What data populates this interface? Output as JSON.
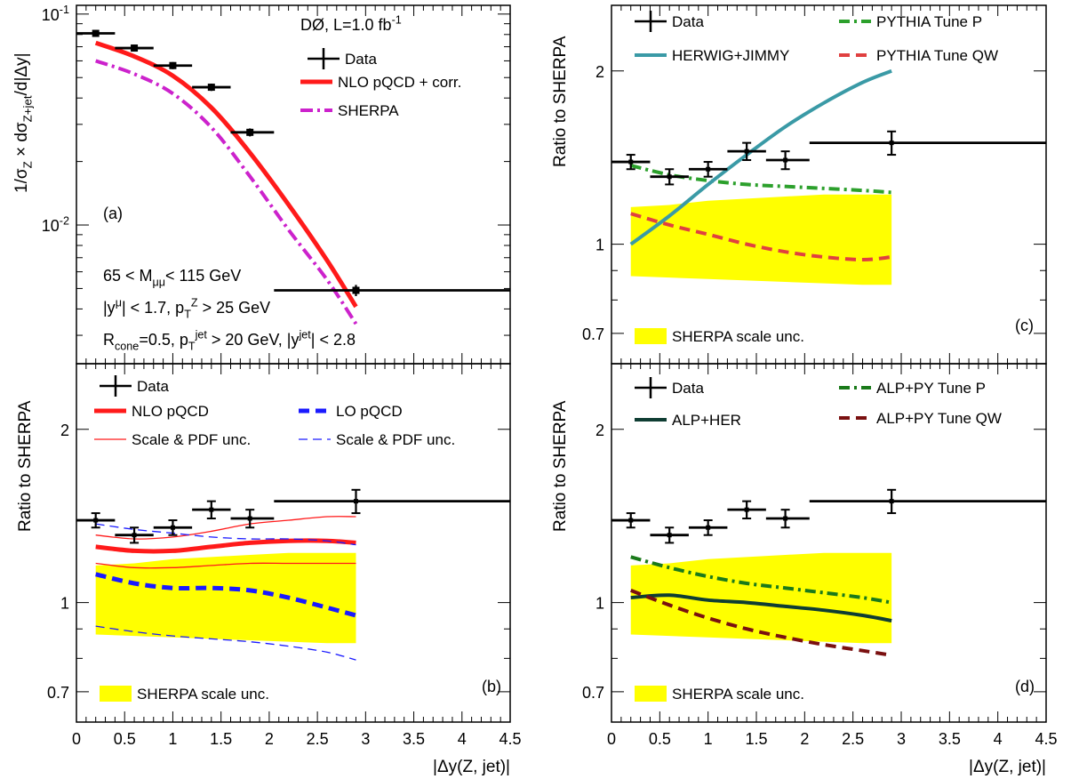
{
  "colors": {
    "black": "#000000",
    "nlo_red": "#ff1a1a",
    "lo_blue": "#1a1aff",
    "sherpa_magenta": "#cc22cc",
    "band_yellow": "#ffff00",
    "herwig_teal": "#3a9aa6",
    "pythia_p_green": "#2ca02c",
    "pythia_qw_red": "#e04040",
    "alp_her": "#0f3d33",
    "alp_py_p": "#1a7a1a",
    "alp_py_qw": "#7a1010"
  },
  "chart_data": [
    {
      "id": "a",
      "type": "line",
      "scale": "log",
      "panel_label": "(a)",
      "ylabel": "1/σ_Z × dσ_Z+jet/d|Δy|",
      "ylim": [
        0.0022,
        0.11
      ],
      "y_ticks": [
        0.01,
        0.1
      ],
      "y_tick_labels": [
        "10^-2",
        "10^-1"
      ],
      "xlim": [
        0,
        4.5
      ],
      "header": "DØ, L=1.0 fb^-1",
      "cuts": [
        "65 < M_μμ< 115 GeV",
        "|y^μ| < 1.7, p_T^Z > 25 GeV",
        "R_cone=0.5, p_T^jet > 20 GeV, |y^jet| < 2.8"
      ],
      "legend": [
        "Data",
        "NLO pQCD + corr.",
        "SHERPA"
      ],
      "data": {
        "name": "Data",
        "x": [
          0.2,
          0.6,
          1.0,
          1.4,
          1.8,
          2.9
        ],
        "xerr": [
          [
            0,
            0.4
          ],
          [
            0.4,
            0.8
          ],
          [
            0.8,
            1.2
          ],
          [
            1.2,
            1.6
          ],
          [
            1.6,
            2.05
          ],
          [
            2.05,
            4.5
          ]
        ],
        "y": [
          0.081,
          0.069,
          0.057,
          0.045,
          0.0275,
          0.0049
        ],
        "yerr": [
          0.003,
          0.0025,
          0.0022,
          0.0018,
          0.0012,
          0.0003
        ]
      },
      "curves": [
        {
          "name": "NLO pQCD + corr.",
          "style": "nlo",
          "x": [
            0.2,
            0.6,
            1.0,
            1.4,
            1.8,
            2.2,
            2.6,
            2.9
          ],
          "y": [
            0.073,
            0.063,
            0.051,
            0.036,
            0.022,
            0.0125,
            0.0068,
            0.0041
          ]
        },
        {
          "name": "SHERPA",
          "style": "sherpa",
          "x": [
            0.2,
            0.6,
            1.0,
            1.4,
            1.8,
            2.2,
            2.6,
            2.9
          ],
          "y": [
            0.06,
            0.052,
            0.042,
            0.029,
            0.017,
            0.0095,
            0.0055,
            0.0034
          ]
        }
      ]
    },
    {
      "id": "b",
      "type": "line",
      "scale": "log",
      "panel_label": "(b)",
      "ylabel": "Ratio to SHERPA",
      "ylim": [
        0.62,
        2.6
      ],
      "y_ticks": [
        0.7,
        1,
        2
      ],
      "y_tick_labels": [
        "0.7",
        "1",
        "2"
      ],
      "xlim": [
        0,
        4.5
      ],
      "x_ticks": [
        0,
        0.5,
        1,
        1.5,
        2,
        2.5,
        3,
        3.5,
        4,
        4.5
      ],
      "x_tick_labels": [
        "0",
        "0.5",
        "1",
        "1.5",
        "2",
        "2.5",
        "3",
        "3.5",
        "4",
        "4.5"
      ],
      "xlabel": "|Δy(Z, jet)|",
      "legend": [
        "Data",
        "NLO pQCD",
        "LO pQCD",
        "Scale & PDF unc.",
        "Scale & PDF unc."
      ],
      "band_legend": "SHERPA scale unc.",
      "band": {
        "x": [
          0.2,
          0.6,
          1.0,
          1.4,
          1.8,
          2.2,
          2.6,
          2.9
        ],
        "lo": [
          0.88,
          0.875,
          0.87,
          0.865,
          0.86,
          0.855,
          0.85,
          0.85
        ],
        "hi": [
          1.16,
          1.17,
          1.19,
          1.2,
          1.21,
          1.22,
          1.22,
          1.22
        ]
      },
      "data": {
        "name": "Data",
        "x": [
          0.2,
          0.6,
          1.0,
          1.4,
          1.8,
          2.9
        ],
        "xerr": [
          [
            0,
            0.4
          ],
          [
            0.4,
            0.8
          ],
          [
            0.8,
            1.2
          ],
          [
            1.2,
            1.6
          ],
          [
            1.6,
            2.05
          ],
          [
            2.05,
            4.5
          ]
        ],
        "y": [
          1.39,
          1.31,
          1.35,
          1.45,
          1.4,
          1.5
        ],
        "yerr": [
          0.04,
          0.04,
          0.04,
          0.05,
          0.05,
          0.07
        ]
      },
      "curves": [
        {
          "name": "NLO pQCD",
          "style": "nlo",
          "x": [
            0.2,
            0.6,
            1.0,
            1.4,
            1.8,
            2.2,
            2.6,
            2.9
          ],
          "y": [
            1.25,
            1.23,
            1.23,
            1.25,
            1.27,
            1.28,
            1.28,
            1.27
          ]
        },
        {
          "name": "Scale & PDF unc.",
          "style": "nlo_unc",
          "x": [
            0.2,
            0.6,
            1.0,
            1.4,
            1.8,
            2.2,
            2.6,
            2.9
          ],
          "y": [
            1.31,
            1.29,
            1.3,
            1.33,
            1.37,
            1.39,
            1.41,
            1.41
          ]
        },
        {
          "name": "Scale & PDF unc.",
          "style": "nlo_unc",
          "x": [
            0.2,
            0.6,
            1.0,
            1.4,
            1.8,
            2.2,
            2.6,
            2.9
          ],
          "y": [
            1.17,
            1.15,
            1.15,
            1.16,
            1.17,
            1.17,
            1.17,
            1.17
          ]
        },
        {
          "name": "LO pQCD",
          "style": "lo",
          "x": [
            0.2,
            0.6,
            1.0,
            1.4,
            1.8,
            2.2,
            2.6,
            2.9
          ],
          "y": [
            1.12,
            1.08,
            1.06,
            1.06,
            1.05,
            1.02,
            0.98,
            0.95
          ]
        },
        {
          "name": "Scale & PDF unc.",
          "style": "lo_unc",
          "x": [
            0.2,
            0.6,
            1.0,
            1.4,
            1.8,
            2.2,
            2.6,
            2.9
          ],
          "y": [
            1.37,
            1.34,
            1.32,
            1.3,
            1.29,
            1.29,
            1.28,
            1.26
          ]
        },
        {
          "name": "Scale & PDF unc.",
          "style": "lo_unc",
          "x": [
            0.2,
            0.6,
            1.0,
            1.4,
            1.8,
            2.2,
            2.6,
            2.9
          ],
          "y": [
            0.91,
            0.89,
            0.875,
            0.865,
            0.855,
            0.84,
            0.82,
            0.795
          ]
        }
      ]
    },
    {
      "id": "c",
      "type": "line",
      "scale": "log",
      "panel_label": "(c)",
      "ylabel": "Ratio to SHERPA",
      "ylim": [
        0.62,
        2.6
      ],
      "y_ticks": [
        0.7,
        1,
        2
      ],
      "y_tick_labels": [
        "0.7",
        "1",
        "2"
      ],
      "xlim": [
        0,
        4.5
      ],
      "legend": [
        "Data",
        "PYTHIA Tune P",
        "HERWIG+JIMMY",
        "PYTHIA Tune QW"
      ],
      "band_legend": "SHERPA scale unc.",
      "band": {
        "x": [
          0.2,
          0.6,
          1.0,
          1.4,
          1.8,
          2.2,
          2.6,
          2.9
        ],
        "lo": [
          0.88,
          0.875,
          0.87,
          0.865,
          0.86,
          0.855,
          0.85,
          0.85
        ],
        "hi": [
          1.16,
          1.17,
          1.19,
          1.2,
          1.21,
          1.22,
          1.22,
          1.22
        ]
      },
      "data": {
        "name": "Data",
        "x": [
          0.2,
          0.6,
          1.0,
          1.4,
          1.8,
          2.9
        ],
        "xerr": [
          [
            0,
            0.4
          ],
          [
            0.4,
            0.8
          ],
          [
            0.8,
            1.2
          ],
          [
            1.2,
            1.6
          ],
          [
            1.6,
            2.05
          ],
          [
            2.05,
            4.5
          ]
        ],
        "y": [
          1.39,
          1.31,
          1.35,
          1.45,
          1.4,
          1.5
        ],
        "yerr": [
          0.04,
          0.04,
          0.04,
          0.05,
          0.05,
          0.07
        ]
      },
      "curves": [
        {
          "name": "PYTHIA Tune P",
          "style": "py_p",
          "x": [
            0.2,
            0.6,
            1.0,
            1.4,
            1.8,
            2.2,
            2.6,
            2.9
          ],
          "y": [
            1.37,
            1.32,
            1.29,
            1.27,
            1.26,
            1.25,
            1.24,
            1.23
          ]
        },
        {
          "name": "HERWIG+JIMMY",
          "style": "herwig",
          "x": [
            0.2,
            0.6,
            1.0,
            1.4,
            1.8,
            2.2,
            2.6,
            2.9
          ],
          "y": [
            1.0,
            1.12,
            1.27,
            1.43,
            1.6,
            1.76,
            1.91,
            2.0
          ]
        },
        {
          "name": "PYTHIA Tune QW",
          "style": "py_qw",
          "x": [
            0.2,
            0.6,
            1.0,
            1.4,
            1.8,
            2.2,
            2.6,
            2.9
          ],
          "y": [
            1.13,
            1.08,
            1.04,
            1.0,
            0.97,
            0.95,
            0.94,
            0.95
          ]
        }
      ]
    },
    {
      "id": "d",
      "type": "line",
      "scale": "log",
      "panel_label": "(d)",
      "ylabel": "Ratio to SHERPA",
      "ylim": [
        0.62,
        2.6
      ],
      "y_ticks": [
        0.7,
        1,
        2
      ],
      "y_tick_labels": [
        "0.7",
        "1",
        "2"
      ],
      "xlim": [
        0,
        4.5
      ],
      "x_ticks": [
        0,
        0.5,
        1,
        1.5,
        2,
        2.5,
        3,
        3.5,
        4,
        4.5
      ],
      "x_tick_labels": [
        "0",
        "0.5",
        "1",
        "1.5",
        "2",
        "2.5",
        "3",
        "3.5",
        "4",
        "4.5"
      ],
      "xlabel": "|Δy(Z, jet)|",
      "legend": [
        "Data",
        "ALP+PY Tune P",
        "ALP+HER",
        "ALP+PY Tune QW"
      ],
      "band_legend": "SHERPA scale unc.",
      "band": {
        "x": [
          0.2,
          0.6,
          1.0,
          1.4,
          1.8,
          2.2,
          2.6,
          2.9
        ],
        "lo": [
          0.88,
          0.875,
          0.87,
          0.865,
          0.86,
          0.855,
          0.85,
          0.85
        ],
        "hi": [
          1.16,
          1.17,
          1.19,
          1.2,
          1.21,
          1.22,
          1.22,
          1.22
        ]
      },
      "data": {
        "name": "Data",
        "x": [
          0.2,
          0.6,
          1.0,
          1.4,
          1.8,
          2.9
        ],
        "xerr": [
          [
            0,
            0.4
          ],
          [
            0.4,
            0.8
          ],
          [
            0.8,
            1.2
          ],
          [
            1.2,
            1.6
          ],
          [
            1.6,
            2.05
          ],
          [
            2.05,
            4.5
          ]
        ],
        "y": [
          1.39,
          1.31,
          1.35,
          1.45,
          1.4,
          1.5
        ],
        "yerr": [
          0.04,
          0.04,
          0.04,
          0.05,
          0.05,
          0.07
        ]
      },
      "curves": [
        {
          "name": "ALP+PY Tune P",
          "style": "alp_p",
          "x": [
            0.2,
            0.6,
            1.0,
            1.4,
            1.8,
            2.2,
            2.6,
            2.9
          ],
          "y": [
            1.2,
            1.15,
            1.11,
            1.08,
            1.06,
            1.04,
            1.02,
            1.0
          ]
        },
        {
          "name": "ALP+HER",
          "style": "alp_her",
          "x": [
            0.2,
            0.6,
            1.0,
            1.4,
            1.8,
            2.2,
            2.6,
            2.9
          ],
          "y": [
            1.02,
            1.03,
            1.01,
            1.0,
            0.985,
            0.97,
            0.95,
            0.93
          ]
        },
        {
          "name": "ALP+PY Tune QW",
          "style": "alp_qw",
          "x": [
            0.2,
            0.6,
            1.0,
            1.4,
            1.8,
            2.2,
            2.6,
            2.9
          ],
          "y": [
            1.05,
            0.99,
            0.94,
            0.9,
            0.87,
            0.845,
            0.825,
            0.81
          ]
        }
      ]
    }
  ]
}
